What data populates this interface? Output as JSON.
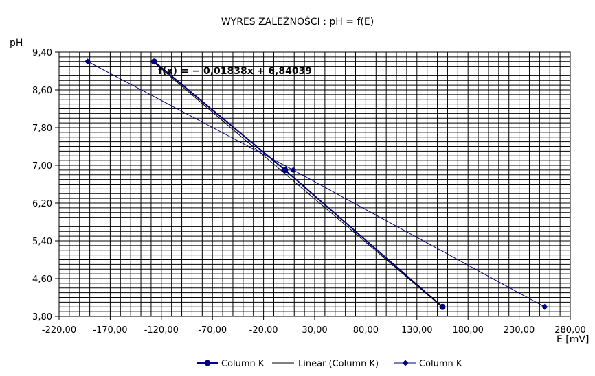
{
  "chart_data": {
    "type": "scatter",
    "title": "WYRES ZALEŻNOŚCI :  pH = f(E)",
    "xlabel": "E [mV]",
    "ylabel": "pH",
    "xlim": [
      -220,
      280
    ],
    "ylim": [
      3.8,
      9.4
    ],
    "x_ticks": [
      "-220,00",
      "-170,00",
      "-120,00",
      "-70,00",
      "-20,00",
      "30,00",
      "80,00",
      "130,00",
      "180,00",
      "230,00",
      "280,00"
    ],
    "y_ticks": [
      "9,40",
      "8,60",
      "7,80",
      "7,00",
      "6,20",
      "5,40",
      "4,60",
      "3,80"
    ],
    "grid": true,
    "legend_position": "bottom",
    "trendline_equation": "f(x) = − 0,01838x + 6,84039",
    "series": [
      {
        "name": "Column K",
        "marker": "circle",
        "color": "#000080",
        "x": [
          -127,
          1,
          155
        ],
        "y": [
          9.2,
          6.9,
          4.0
        ]
      },
      {
        "name": "Linear (Column K)",
        "type": "line",
        "color": "#000000",
        "slope": -0.01838,
        "intercept": 6.84039
      },
      {
        "name": "Column K",
        "marker": "diamond",
        "color": "#000080",
        "x": [
          -192,
          9,
          255
        ],
        "y": [
          9.2,
          6.9,
          4.0
        ]
      }
    ]
  }
}
